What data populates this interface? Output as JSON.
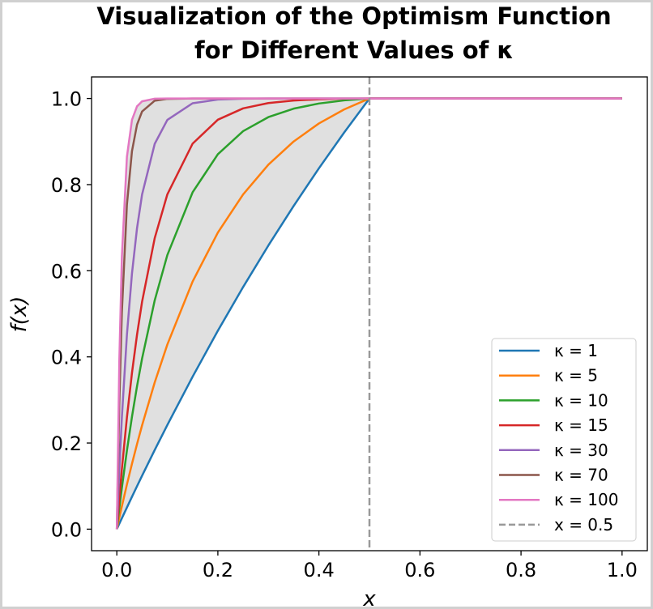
{
  "chart_data": {
    "type": "line",
    "title_lines": [
      "Visualization of the Optimism Function",
      "for Different Values of κ"
    ],
    "xlabel": "x",
    "ylabel": "f(x)",
    "xlim": [
      -0.05,
      1.05
    ],
    "ylim": [
      -0.05,
      1.05
    ],
    "xticks": [
      "0.0",
      "0.2",
      "0.4",
      "0.6",
      "0.8",
      "1.0"
    ],
    "yticks": [
      "0.0",
      "0.2",
      "0.4",
      "0.6",
      "0.8",
      "1.0"
    ],
    "grid": false,
    "legend_position": "bottom-right",
    "x": [
      0,
      0.005,
      0.01,
      0.02,
      0.03,
      0.04,
      0.05,
      0.075,
      0.1,
      0.15,
      0.2,
      0.25,
      0.3,
      0.35,
      0.4,
      0.45,
      0.5,
      1.0
    ],
    "series": [
      {
        "name": "κ = 1",
        "color": "#1f77b4",
        "values": [
          0,
          0.0127,
          0.0253,
          0.0503,
          0.0751,
          0.0997,
          0.124,
          0.1837,
          0.2419,
          0.354,
          0.4607,
          0.5622,
          0.6587,
          0.7505,
          0.8379,
          0.921,
          1,
          1
        ]
      },
      {
        "name": "κ = 5",
        "color": "#ff7f0e",
        "values": [
          0,
          0.0269,
          0.0531,
          0.1037,
          0.1517,
          0.1975,
          0.241,
          0.3407,
          0.4287,
          0.5748,
          0.6887,
          0.7773,
          0.8463,
          0.9001,
          0.942,
          0.9746,
          1,
          1
        ]
      },
      {
        "name": "κ = 10",
        "color": "#2ca02c",
        "values": [
          0,
          0.0491,
          0.0958,
          0.1825,
          0.2609,
          0.3319,
          0.3961,
          0.5312,
          0.6364,
          0.7821,
          0.8705,
          0.9241,
          0.9567,
          0.9764,
          0.9883,
          0.9956,
          1,
          1
        ]
      },
      {
        "name": "κ = 15",
        "color": "#d62728",
        "values": [
          0,
          0.0723,
          0.1394,
          0.2593,
          0.3626,
          0.4514,
          0.5279,
          0.6757,
          0.7773,
          0.8951,
          0.9507,
          0.977,
          0.9894,
          0.9953,
          0.9981,
          0.9994,
          1,
          1
        ]
      },
      {
        "name": "κ = 30",
        "color": "#9467bd",
        "values": [
          0,
          0.1393,
          0.2592,
          0.4512,
          0.5934,
          0.6988,
          0.7769,
          0.8946,
          0.9502,
          0.9889,
          0.9975,
          0.9994,
          0.9999,
          1,
          1,
          1,
          1,
          1
        ]
      },
      {
        "name": "κ = 70",
        "color": "#8c564b",
        "values": [
          0,
          0.2953,
          0.5034,
          0.7534,
          0.8775,
          0.9392,
          0.9698,
          0.9948,
          0.9991,
          1,
          1,
          1,
          1,
          1,
          1,
          1,
          1,
          1
        ]
      },
      {
        "name": "κ = 100",
        "color": "#e377c2",
        "values": [
          0,
          0.3935,
          0.6321,
          0.8647,
          0.9502,
          0.9817,
          0.9933,
          0.9994,
          1,
          1,
          1,
          1,
          1,
          1,
          1,
          1,
          1,
          1
        ]
      }
    ],
    "vline": {
      "name": "x = 0.5",
      "x": 0.5,
      "color": "#999999",
      "style": "dashed"
    },
    "fill_between": {
      "lower": "κ = 1",
      "upper": "κ = 100",
      "color": "#e0e0e0"
    }
  }
}
